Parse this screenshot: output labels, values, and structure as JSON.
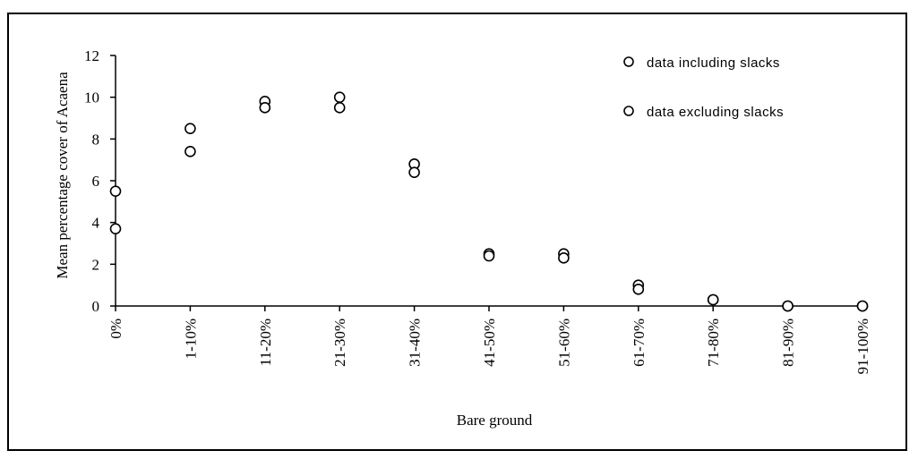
{
  "chart_data": {
    "type": "scatter",
    "xlabel": "Bare ground",
    "ylabel": "Mean percentage cover of Acaena",
    "categories": [
      "0%",
      "1-10%",
      "11-20%",
      "21-30%",
      "31-40%",
      "41-50%",
      "51-60%",
      "61-70%",
      "71-80%",
      "81-90%",
      "91-100%"
    ],
    "y_ticks": [
      "0",
      "2",
      "4",
      "6",
      "8",
      "10",
      "12"
    ],
    "ylim": [
      0,
      12
    ],
    "grid": false,
    "legend_position": "top-right",
    "marker": "open-circle",
    "series": [
      {
        "name": "data including slacks",
        "values": [
          5.5,
          8.5,
          9.8,
          10.0,
          6.8,
          2.5,
          2.5,
          1.0,
          0.3,
          0.0,
          0.0
        ]
      },
      {
        "name": "data excluding slacks",
        "values": [
          3.7,
          7.4,
          9.5,
          9.5,
          6.4,
          2.4,
          2.3,
          0.8,
          0.3,
          0.0,
          0.0
        ]
      }
    ]
  }
}
